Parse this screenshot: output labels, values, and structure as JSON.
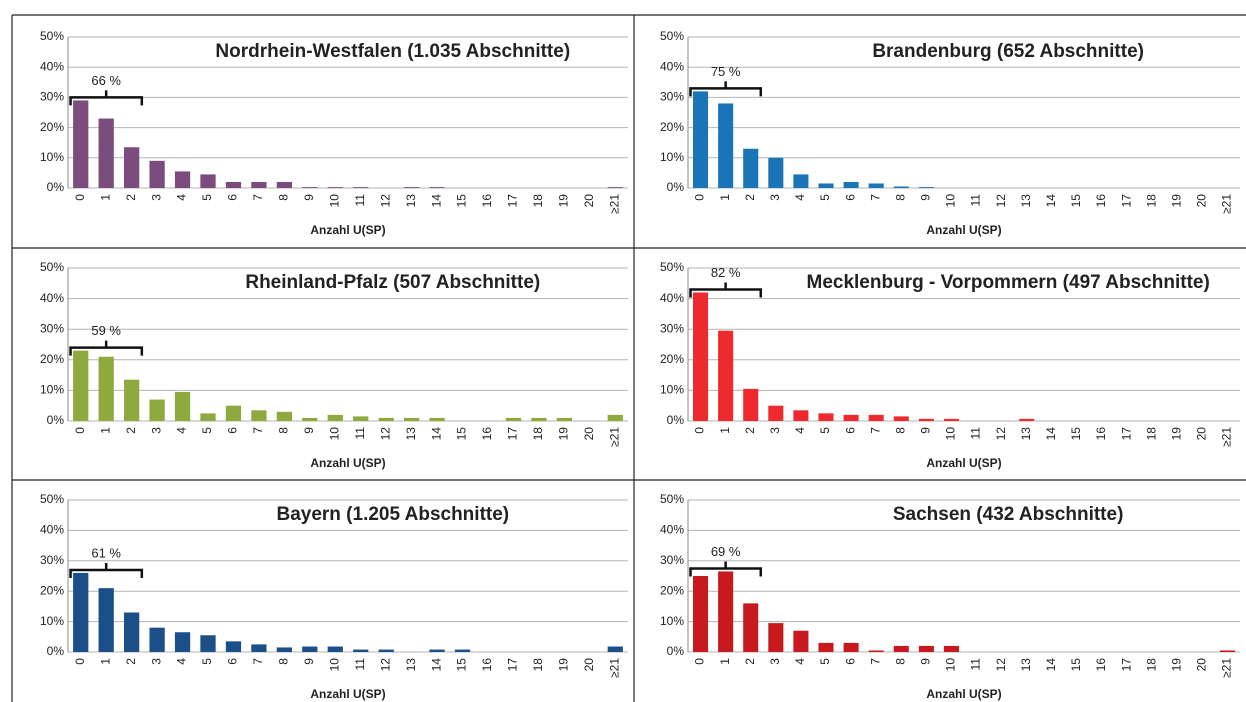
{
  "chart_data": [
    {
      "type": "bar",
      "title": "Nordrhein-Westfalen (1.035 Abschnitte)",
      "xlabel": "Anzahl U(SP)",
      "annotation": "66 %",
      "color": "#7b4d7e",
      "categories": [
        "0",
        "1",
        "2",
        "3",
        "4",
        "5",
        "6",
        "7",
        "8",
        "9",
        "10",
        "11",
        "12",
        "13",
        "14",
        "15",
        "16",
        "17",
        "18",
        "19",
        "20",
        "≥21"
      ],
      "values": [
        29,
        23,
        13.5,
        9,
        5.5,
        4.5,
        2,
        2,
        2,
        0.3,
        0.3,
        0.3,
        0,
        0.3,
        0.3,
        0,
        0,
        0,
        0,
        0,
        0,
        0.3
      ],
      "ylim": [
        0,
        50
      ],
      "yticks": [
        {
          "value": 0,
          "label": "0%"
        },
        {
          "value": 10,
          "label": "10%"
        },
        {
          "value": 20,
          "label": "20%"
        },
        {
          "value": 30,
          "label": "30%"
        },
        {
          "value": 40,
          "label": "40%"
        },
        {
          "value": 50,
          "label": "50%"
        }
      ],
      "grid": true
    },
    {
      "type": "bar",
      "title": "Brandenburg (652 Abschnitte)",
      "xlabel": "Anzahl U(SP)",
      "annotation": "75 %",
      "color": "#1a75b8",
      "categories": [
        "0",
        "1",
        "2",
        "3",
        "4",
        "5",
        "6",
        "7",
        "8",
        "9",
        "10",
        "11",
        "12",
        "13",
        "14",
        "15",
        "16",
        "17",
        "18",
        "19",
        "20",
        "≥21"
      ],
      "values": [
        32,
        28,
        13,
        10,
        4.5,
        1.5,
        2,
        1.5,
        0.5,
        0.3,
        0,
        0,
        0,
        0,
        0,
        0,
        0,
        0,
        0,
        0,
        0,
        0
      ],
      "ylim": [
        0,
        50
      ],
      "yticks": [
        {
          "value": 0,
          "label": "0%"
        },
        {
          "value": 10,
          "label": "10%"
        },
        {
          "value": 20,
          "label": "20%"
        },
        {
          "value": 30,
          "label": "30%"
        },
        {
          "value": 40,
          "label": "40%"
        },
        {
          "value": 50,
          "label": "50%"
        }
      ],
      "grid": true
    },
    {
      "type": "bar",
      "title": "Rheinland-Pfalz  (507 Abschnitte)",
      "xlabel": "Anzahl U(SP)",
      "annotation": "59 %",
      "color": "#8ea93e",
      "categories": [
        "0",
        "1",
        "2",
        "3",
        "4",
        "5",
        "6",
        "7",
        "8",
        "9",
        "10",
        "11",
        "12",
        "13",
        "14",
        "15",
        "16",
        "17",
        "18",
        "19",
        "20",
        "≥21"
      ],
      "values": [
        23,
        21,
        13.5,
        7,
        9.5,
        2.5,
        5,
        3.5,
        3,
        1,
        2,
        1.5,
        1,
        1,
        1,
        0,
        0,
        1,
        1,
        1,
        0,
        2
      ],
      "ylim": [
        0,
        50
      ],
      "yticks": [
        {
          "value": 0,
          "label": "0%"
        },
        {
          "value": 10,
          "label": "10%"
        },
        {
          "value": 20,
          "label": "20%"
        },
        {
          "value": 30,
          "label": "30%"
        },
        {
          "value": 40,
          "label": "40%"
        },
        {
          "value": 50,
          "label": "50%"
        }
      ],
      "grid": true
    },
    {
      "type": "bar",
      "title": "Mecklenburg - Vorpommern (497 Abschnitte)",
      "xlabel": "Anzahl U(SP)",
      "annotation": "82 %",
      "color": "#ee2a2f",
      "categories": [
        "0",
        "1",
        "2",
        "3",
        "4",
        "5",
        "6",
        "7",
        "8",
        "9",
        "10",
        "11",
        "12",
        "13",
        "14",
        "15",
        "16",
        "17",
        "18",
        "19",
        "20",
        "≥21"
      ],
      "values": [
        42,
        29.5,
        10.5,
        5,
        3.5,
        2.5,
        2,
        2,
        1.5,
        0.7,
        0.7,
        0,
        0,
        0.7,
        0,
        0,
        0,
        0,
        0,
        0,
        0,
        0
      ],
      "ylim": [
        0,
        50
      ],
      "yticks": [
        {
          "value": 0,
          "label": "0%"
        },
        {
          "value": 10,
          "label": "10%"
        },
        {
          "value": 20,
          "label": "20%"
        },
        {
          "value": 30,
          "label": "30%"
        },
        {
          "value": 40,
          "label": "40%"
        },
        {
          "value": 50,
          "label": "50%"
        }
      ],
      "grid": true
    },
    {
      "type": "bar",
      "title": "Bayern (1.205 Abschnitte)",
      "xlabel": "Anzahl U(SP)",
      "annotation": "61 %",
      "color": "#1b4f8a",
      "categories": [
        "0",
        "1",
        "2",
        "3",
        "4",
        "5",
        "6",
        "7",
        "8",
        "9",
        "10",
        "11",
        "12",
        "13",
        "14",
        "15",
        "16",
        "17",
        "18",
        "19",
        "20",
        "≥21"
      ],
      "values": [
        26,
        21,
        13,
        8,
        6.5,
        5.5,
        3.5,
        2.5,
        1.5,
        1.8,
        1.8,
        0.8,
        0.8,
        0,
        0.8,
        0.8,
        0,
        0,
        0,
        0,
        0,
        1.8
      ],
      "ylim": [
        0,
        50
      ],
      "yticks": [
        {
          "value": 0,
          "label": "0%"
        },
        {
          "value": 10,
          "label": "10%"
        },
        {
          "value": 20,
          "label": "20%"
        },
        {
          "value": 30,
          "label": "30%"
        },
        {
          "value": 40,
          "label": "40%"
        },
        {
          "value": 50,
          "label": "50%"
        }
      ],
      "grid": true
    },
    {
      "type": "bar",
      "title": "Sachsen (432 Abschnitte)",
      "xlabel": "Anzahl U(SP)",
      "annotation": "69 %",
      "color": "#c8191f",
      "categories": [
        "0",
        "1",
        "2",
        "3",
        "4",
        "5",
        "6",
        "7",
        "8",
        "9",
        "10",
        "11",
        "12",
        "13",
        "14",
        "15",
        "16",
        "17",
        "18",
        "19",
        "20",
        "≥21"
      ],
      "values": [
        25,
        26.5,
        16,
        9.5,
        7,
        3,
        3,
        0.5,
        2,
        2,
        2,
        0,
        0,
        0,
        0,
        0,
        0,
        0,
        0,
        0,
        0,
        0.5
      ],
      "ylim": [
        0,
        50
      ],
      "yticks": [
        {
          "value": 0,
          "label": "0%"
        },
        {
          "value": 10,
          "label": "10%"
        },
        {
          "value": 20,
          "label": "20%"
        },
        {
          "value": 30,
          "label": "30%"
        },
        {
          "value": 40,
          "label": "40%"
        },
        {
          "value": 50,
          "label": "50%"
        }
      ],
      "grid": true
    }
  ]
}
